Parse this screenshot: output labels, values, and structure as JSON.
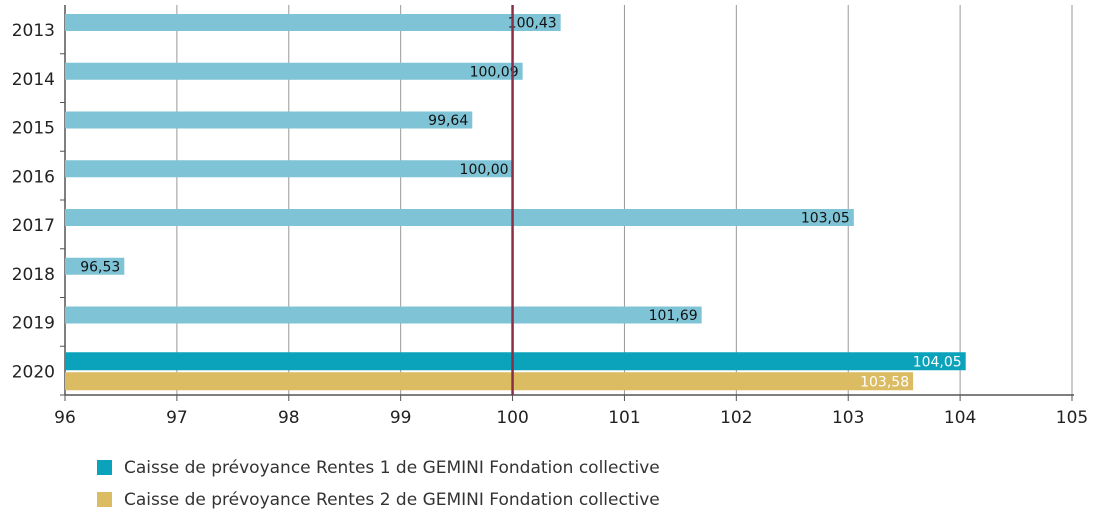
{
  "chart_data": {
    "type": "hbar",
    "categories": [
      "2013",
      "2014",
      "2015",
      "2016",
      "2017",
      "2018",
      "2019",
      "2020"
    ],
    "series": [
      {
        "name": "Caisse de prévoyance Rentes 1 de GEMINI Fondation collective",
        "color": "#0aa3bb",
        "colors": [
          "#7fc4d6",
          "#7fc4d6",
          "#7fc4d6",
          "#7fc4d6",
          "#7fc4d6",
          "#7fc4d6",
          "#7fc4d6",
          "#0aa3bb"
        ],
        "values": [
          100.43,
          100.09,
          99.64,
          100.0,
          103.05,
          96.53,
          101.69,
          104.05
        ],
        "value_labels": [
          "100,43",
          "100,09",
          "99,64",
          "100,00",
          "103,05",
          "96,53",
          "101,69",
          "104,05"
        ]
      },
      {
        "name": "Caisse de prévoyance Rentes 2 de GEMINI Fondation collective",
        "color": "#dcbc62",
        "values": [
          null,
          null,
          null,
          null,
          null,
          null,
          null,
          103.58
        ],
        "value_labels": [
          null,
          null,
          null,
          null,
          null,
          null,
          null,
          "103,58"
        ]
      }
    ],
    "xlim": [
      96,
      105
    ],
    "xticks": [
      96,
      97,
      98,
      99,
      100,
      101,
      102,
      103,
      104,
      105
    ],
    "grid": true,
    "reference_line": {
      "value": 100,
      "color": "#8b2e45"
    }
  }
}
